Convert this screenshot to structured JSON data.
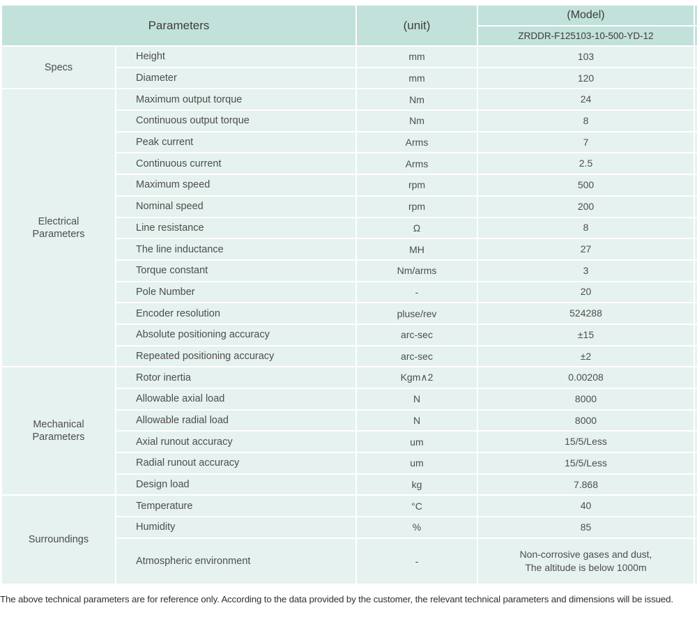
{
  "header": {
    "parameters_label": "Parameters",
    "unit_label": "(unit)",
    "model_label": "(Model)",
    "model_value": "ZRDDR-F125103-10-500-YD-12"
  },
  "sections": [
    {
      "label": "Specs",
      "rows": [
        {
          "param": "Height",
          "unit": "mm",
          "value": "103"
        },
        {
          "param": "Diameter",
          "unit": "mm",
          "value": "120"
        }
      ]
    },
    {
      "label": "Electrical Parameters",
      "rows": [
        {
          "param": "Maximum output torque",
          "unit": "Nm",
          "value": "24"
        },
        {
          "param": "Continuous output torque",
          "unit": "Nm",
          "value": "8"
        },
        {
          "param": "Peak current",
          "unit": "Arms",
          "value": "7"
        },
        {
          "param": "Continuous current",
          "unit": "Arms",
          "value": "2.5"
        },
        {
          "param": "Maximum speed",
          "unit": "rpm",
          "value": "500"
        },
        {
          "param": "Nominal speed",
          "unit": "rpm",
          "value": "200"
        },
        {
          "param": "Line resistance",
          "unit": "Ω",
          "value": "8"
        },
        {
          "param": "The line inductance",
          "unit": "MH",
          "value": "27"
        },
        {
          "param": "Torque constant",
          "unit": "Nm/arms",
          "value": "3"
        },
        {
          "param": "Pole Number",
          "unit": "-",
          "value": "20"
        },
        {
          "param": "Encoder resolution",
          "unit": "pluse/rev",
          "value": "524288"
        },
        {
          "param": "Absolute positioning accuracy",
          "unit": "arc-sec",
          "value": "±15"
        },
        {
          "param": "Repeated positioning accuracy",
          "unit": "arc-sec",
          "value": "±2"
        }
      ]
    },
    {
      "label": "Mechanical Parameters",
      "rows": [
        {
          "param": "Rotor inertia",
          "unit": "Kgm∧2",
          "value": "0.00208"
        },
        {
          "param": "Allowable axial load",
          "unit": "N",
          "value": "8000"
        },
        {
          "param": "Allowable radial load",
          "unit": "N",
          "value": "8000"
        },
        {
          "param": "Axial runout accuracy",
          "unit": "um",
          "value": "15/5/Less"
        },
        {
          "param": "Radial runout accuracy",
          "unit": "um",
          "value": "15/5/Less"
        },
        {
          "param": "Design load",
          "unit": "kg",
          "value": "7.868"
        }
      ]
    },
    {
      "label": "Surroundings",
      "rows": [
        {
          "param": "Temperature",
          "unit": "°C",
          "value": "40"
        },
        {
          "param": "Humidity",
          "unit": "%",
          "value": "85"
        },
        {
          "param": "Atmospheric environment",
          "unit": "-",
          "value": "Non-corrosive gases and dust,\nThe altitude is below 1000m"
        }
      ]
    }
  ],
  "footer": {
    "note": "The above technical parameters are for reference only. According to the data provided by the customer, the relevant technical parameters and dimensions will be issued."
  },
  "colors": {
    "header_teal": "#c2e1da",
    "row_mint": "#e5f2ef",
    "separator": "#ffffff",
    "text": "#4d4d4d"
  }
}
